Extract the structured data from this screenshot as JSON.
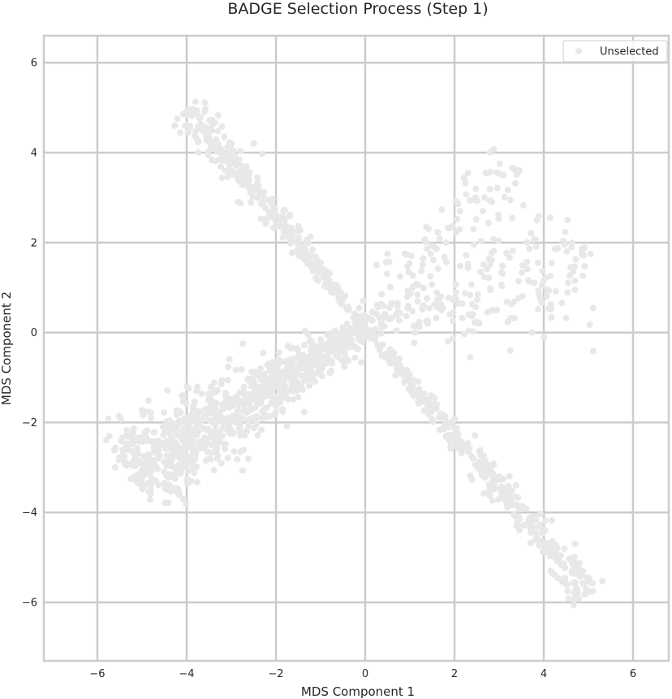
{
  "chart_data": {
    "type": "scatter",
    "title": "BADGE Selection Process (Step 1)",
    "xlabel": "MDS Component 1",
    "ylabel": "MDS Component 2",
    "xlim": [
      -7.2,
      6.8
    ],
    "ylim": [
      -7.3,
      6.6
    ],
    "xticks": [
      -6,
      -4,
      -2,
      0,
      2,
      4,
      6
    ],
    "yticks": [
      -6,
      -4,
      -2,
      0,
      2,
      4,
      6
    ],
    "xtick_labels": [
      "−6",
      "−4",
      "−2",
      "0",
      "2",
      "4",
      "6"
    ],
    "ytick_labels": [
      "−6",
      "−4",
      "−2",
      "0",
      "2",
      "4",
      "6"
    ],
    "grid": true,
    "legend": {
      "placement": "top-right",
      "entries": [
        "Unselected"
      ]
    },
    "colors": {
      "points": "#e8e8e8",
      "grid": "#cccccc",
      "spine": "#cccccc",
      "text": "#262626"
    },
    "series": [
      {
        "name": "Unselected",
        "arms": [
          {
            "from": [
              0.0,
              0.1
            ],
            "to": [
              -4.0,
              5.0
            ],
            "spread": 0.16,
            "count": 320
          },
          {
            "from": [
              0.0,
              0.1
            ],
            "to": [
              5.0,
              -5.8
            ],
            "spread": 0.16,
            "count": 380
          },
          {
            "from": [
              0.0,
              0.1
            ],
            "to": [
              -5.3,
              -3.2
            ],
            "spread": 0.42,
            "count": 900
          },
          {
            "from": [
              0.0,
              0.1
            ],
            "to": [
              5.0,
              1.7
            ],
            "spread": 0.55,
            "count": 180
          },
          {
            "from": [
              0.0,
              0.1
            ],
            "to": [
              3.4,
              3.6
            ],
            "spread": 0.45,
            "count": 110
          }
        ],
        "outliers": [
          [
            -3.9,
            4.95
          ],
          [
            -3.6,
            4.9
          ],
          [
            -3.7,
            4.6
          ],
          [
            -3.5,
            4.35
          ],
          [
            -2.6,
            3.4
          ],
          [
            -3.2,
            3.9
          ],
          [
            5.1,
            -5.75
          ],
          [
            4.95,
            -5.7
          ],
          [
            4.5,
            -5.6
          ],
          [
            4.3,
            -5.05
          ],
          [
            4.4,
            -5.15
          ],
          [
            4.7,
            -4.7
          ],
          [
            2.3,
            3.55
          ],
          [
            3.45,
            3.6
          ],
          [
            3.1,
            3.5
          ],
          [
            2.7,
            3.55
          ],
          [
            4.85,
            1.8
          ],
          [
            5.05,
            1.75
          ],
          [
            4.7,
            0.95
          ],
          [
            4.6,
            1.45
          ],
          [
            -5.6,
            -3.0
          ],
          [
            -5.0,
            -3.4
          ],
          [
            -4.5,
            -3.35
          ],
          [
            -3.9,
            -3.3
          ],
          [
            -4.8,
            -1.9
          ],
          [
            -4.95,
            -1.75
          ],
          [
            1.6,
            -1.6
          ],
          [
            1.55,
            -1.45
          ],
          [
            3.25,
            -0.4
          ],
          [
            4.0,
            -0.1
          ],
          [
            2.35,
            -0.55
          ],
          [
            1.85,
            -0.2
          ],
          [
            0.5,
            1.75
          ],
          [
            0.25,
            1.5
          ],
          [
            1.3,
            1.65
          ]
        ]
      }
    ]
  }
}
